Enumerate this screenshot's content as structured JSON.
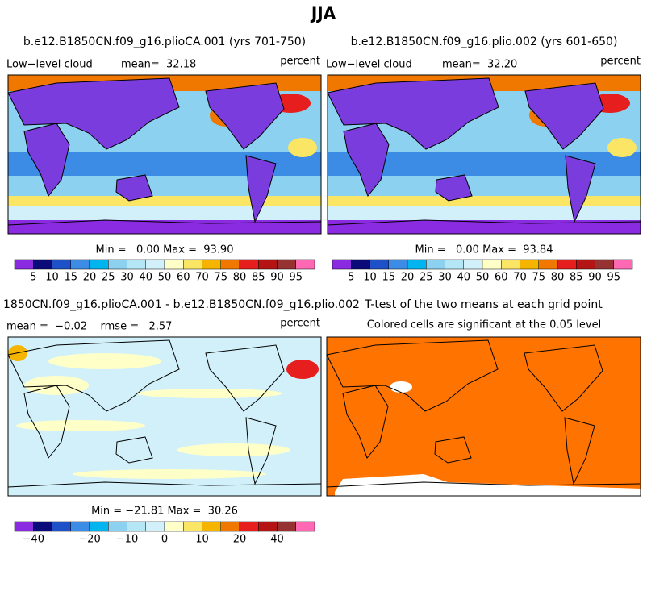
{
  "title": "JJA",
  "panels": [
    {
      "title": "b.e12.B1850CN.f09_g16.plioCA.001 (yrs 701-750)",
      "variable": "Low−level cloud",
      "stat": "mean=  32.18",
      "units": "percent",
      "minmax": "Min =   0.00 Max =  93.90",
      "colorbar_labels": [
        "5",
        "10",
        "15",
        "20",
        "25",
        "30",
        "40",
        "50",
        "60",
        "70",
        "75",
        "80",
        "85",
        "90",
        "95"
      ]
    },
    {
      "title": "b.e12.B1850CN.f09_g16.plio.002 (yrs 601-650)",
      "variable": "Low−level cloud",
      "stat": "mean=  32.20",
      "units": "percent",
      "minmax": "Min =   0.00 Max =  93.84",
      "colorbar_labels": [
        "5",
        "10",
        "15",
        "20",
        "25",
        "30",
        "40",
        "50",
        "60",
        "70",
        "75",
        "80",
        "85",
        "90",
        "95"
      ]
    },
    {
      "title": "1850CN.f09_g16.plioCA.001 - b.e12.B1850CN.f09_g16.plio.002",
      "stat": "mean =  −0.02    rmse =   2.57",
      "units": "percent",
      "minmax": "Min = −21.81 Max =  30.26",
      "colorbar_labels": [
        "−40",
        "−20",
        "−10",
        "0",
        "10",
        "20",
        "40"
      ]
    },
    {
      "title": "T-test of the two means at each grid point",
      "stat": "Colored cells are significant at the 0.05 level"
    }
  ]
}
